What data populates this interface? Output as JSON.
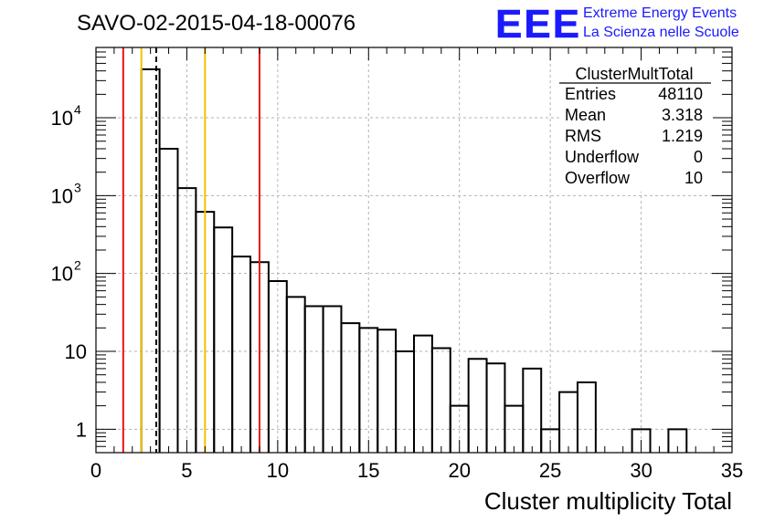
{
  "header": {
    "run_title": "SAVO-02-2015-04-18-00076",
    "logo_text": "EEE",
    "logo_line1": "Extreme Energy Events",
    "logo_line2": "La Scienza nelle Scuole"
  },
  "stats": {
    "title": "ClusterMultTotal",
    "rows": [
      {
        "label": "Entries",
        "value": "48110"
      },
      {
        "label": "Mean",
        "value": "3.318"
      },
      {
        "label": "RMS",
        "value": "1.219"
      },
      {
        "label": "Underflow",
        "value": "0"
      },
      {
        "label": "Overflow",
        "value": "10"
      }
    ]
  },
  "chart_data": {
    "type": "histogram",
    "xlabel": "Cluster multiplicity Total",
    "ylabel": "",
    "xlim": [
      0,
      35
    ],
    "ylim_log": [
      0.5,
      80000
    ],
    "y_scale": "log",
    "grid": true,
    "x_ticks": [
      "0",
      "5",
      "10",
      "15",
      "20",
      "25",
      "30",
      "35"
    ],
    "y_ticks": [
      {
        "value": 1,
        "label": "1"
      },
      {
        "value": 10,
        "label": "10"
      },
      {
        "value": 100,
        "base": "10",
        "exp": "2"
      },
      {
        "value": 1000,
        "base": "10",
        "exp": "3"
      },
      {
        "value": 10000,
        "base": "10",
        "exp": "4"
      }
    ],
    "bin_width": 1,
    "bins": [
      {
        "x0": 2.5,
        "count": 42000
      },
      {
        "x0": 3.5,
        "count": 4000
      },
      {
        "x0": 4.5,
        "count": 1250
      },
      {
        "x0": 5.5,
        "count": 620
      },
      {
        "x0": 6.5,
        "count": 390
      },
      {
        "x0": 7.5,
        "count": 165
      },
      {
        "x0": 8.5,
        "count": 140
      },
      {
        "x0": 9.5,
        "count": 80
      },
      {
        "x0": 10.5,
        "count": 50
      },
      {
        "x0": 11.5,
        "count": 38
      },
      {
        "x0": 12.5,
        "count": 38
      },
      {
        "x0": 13.5,
        "count": 23
      },
      {
        "x0": 14.5,
        "count": 20
      },
      {
        "x0": 15.5,
        "count": 19
      },
      {
        "x0": 16.5,
        "count": 10
      },
      {
        "x0": 17.5,
        "count": 16
      },
      {
        "x0": 18.5,
        "count": 11
      },
      {
        "x0": 19.5,
        "count": 2
      },
      {
        "x0": 20.5,
        "count": 8
      },
      {
        "x0": 21.5,
        "count": 7
      },
      {
        "x0": 22.5,
        "count": 2
      },
      {
        "x0": 23.5,
        "count": 6
      },
      {
        "x0": 24.5,
        "count": 1
      },
      {
        "x0": 25.5,
        "count": 3
      },
      {
        "x0": 26.5,
        "count": 4
      },
      {
        "x0": 29.5,
        "count": 1
      },
      {
        "x0": 31.5,
        "count": 1
      }
    ],
    "vertical_lines": [
      {
        "x": 1.5,
        "color": "#e8141b",
        "style": "solid"
      },
      {
        "x": 2.5,
        "color": "#f3c100",
        "style": "solid"
      },
      {
        "x": 3.318,
        "color": "#000000",
        "style": "dashed"
      },
      {
        "x": 6.0,
        "color": "#f3c100",
        "style": "solid"
      },
      {
        "x": 9.0,
        "color": "#e8141b",
        "style": "solid"
      }
    ],
    "colors": {
      "logo": "#1a1aff",
      "hist": "#000000",
      "grid": "#b3b3b3"
    }
  }
}
